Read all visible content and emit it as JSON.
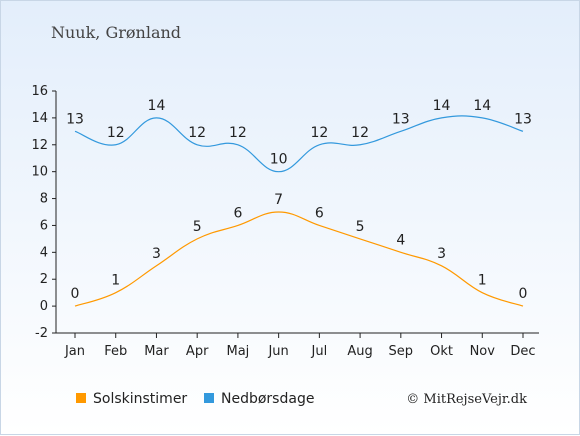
{
  "chart_data": {
    "type": "line",
    "title": "Nuuk, Grønland",
    "categories": [
      "Jan",
      "Feb",
      "Mar",
      "Apr",
      "Maj",
      "Jun",
      "Jul",
      "Aug",
      "Sep",
      "Okt",
      "Nov",
      "Dec"
    ],
    "series": [
      {
        "name": "Solskinstimer",
        "color": "#ff9900",
        "values": [
          0,
          1,
          3,
          5,
          6,
          7,
          6,
          5,
          4,
          3,
          1,
          0
        ]
      },
      {
        "name": "Nedbørsdage",
        "color": "#3399dd",
        "values": [
          13,
          12,
          14,
          12,
          12,
          10,
          12,
          12,
          13,
          14,
          14,
          13
        ]
      }
    ],
    "ylim": [
      -2,
      16
    ],
    "yticks": [
      -2,
      0,
      2,
      4,
      6,
      8,
      10,
      12,
      14,
      16
    ],
    "grid": false,
    "legend_placement": "bottom-left"
  },
  "copyright": "© MitRejseVejr.dk"
}
